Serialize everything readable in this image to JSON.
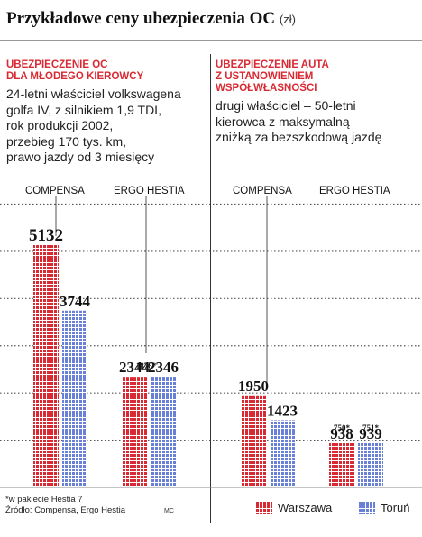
{
  "header": {
    "title": "Przykładowe ceny ubezpieczenia OC",
    "unit": "(zł)"
  },
  "panels": [
    {
      "heading": [
        "UBEZPIECZENIE OC",
        "DLA MŁODEGO KIEROWCY"
      ],
      "description": [
        "24-letni właściciel volkswagena",
        "golfa IV, z silnikiem 1,9 TDI,",
        "rok produkcji 2002,",
        "przebieg 170 tys. km,",
        "prawo jazdy od 3 miesięcy"
      ]
    },
    {
      "heading": [
        "UBEZPIECZENIE AUTA",
        "Z USTANOWIENIEM",
        "WSPÓŁWŁASNOŚCI"
      ],
      "description": [
        "drugi właściciel – 50-letni",
        "kierowca z maksymalną",
        "zniżką za bezszkodową jazdę"
      ]
    }
  ],
  "colors": {
    "warszawa": "#d92a33",
    "torun": "#6a7fd6"
  },
  "chart_data": {
    "type": "bar",
    "unit": "zł",
    "categories": [
      "COMPENSA",
      "ERGO HESTIA",
      "COMPENSA",
      "ERGO HESTIA"
    ],
    "series": [
      {
        "name": "Warszawa",
        "values": [
          5132,
          2344,
          1950,
          938
        ],
        "labels": [
          "5132",
          "2344",
          "1950",
          "938"
        ]
      },
      {
        "name": "Toruń",
        "values": [
          3744,
          2346,
          1423,
          939
        ],
        "labels": [
          "3744",
          "2346",
          "1423",
          "939"
        ]
      }
    ],
    "annotations": [
      {
        "group": 1,
        "text": "1876*"
      },
      {
        "group": 3,
        "text": "750*"
      },
      {
        "group": 3,
        "text": "751*"
      }
    ],
    "ylim": [
      0,
      5300
    ],
    "grid": true,
    "legend": "bottom-right"
  },
  "footnote": [
    "*w pakiecie Hestia 7",
    "Źródło: Compensa, Ergo Hestia"
  ],
  "credit": "MC"
}
